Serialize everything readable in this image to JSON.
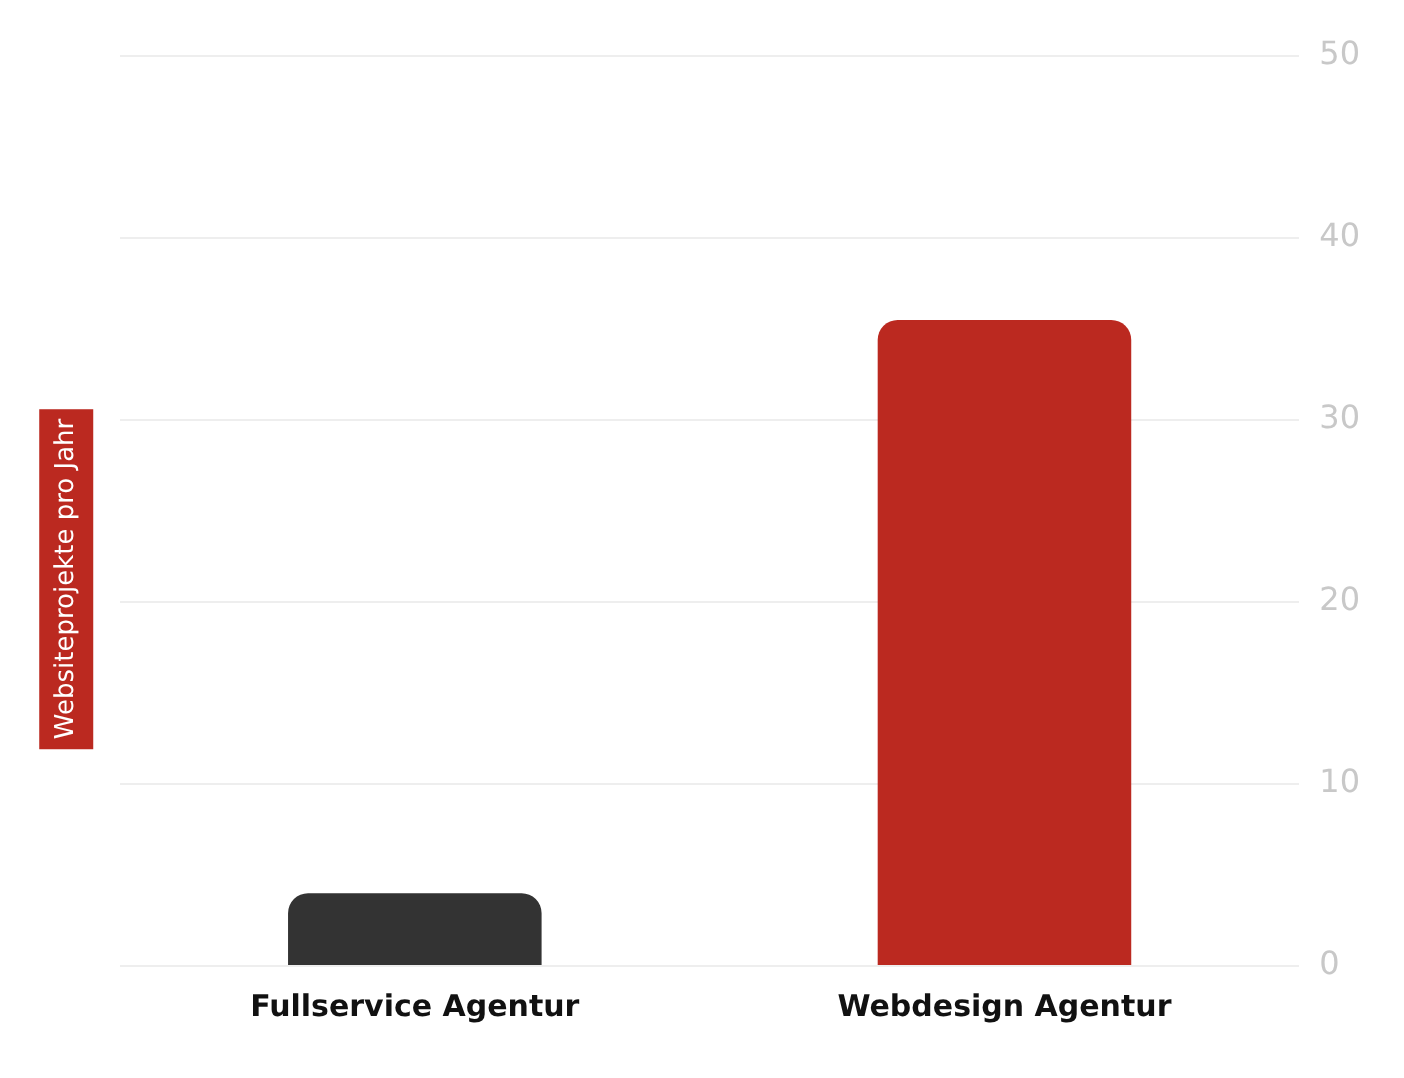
{
  "chart_data": {
    "type": "bar",
    "ylabel": "Websiteprojekte pro Jahr",
    "categories": [
      "Fullservice Agentur",
      "Webdesign Agentur"
    ],
    "values": [
      4,
      35.5
    ],
    "colors": [
      "#333333",
      "#bb2920"
    ],
    "ylim": [
      0,
      50
    ],
    "yticks": [
      0,
      10,
      20,
      30,
      40,
      50
    ],
    "grid": "y",
    "legend": false
  }
}
